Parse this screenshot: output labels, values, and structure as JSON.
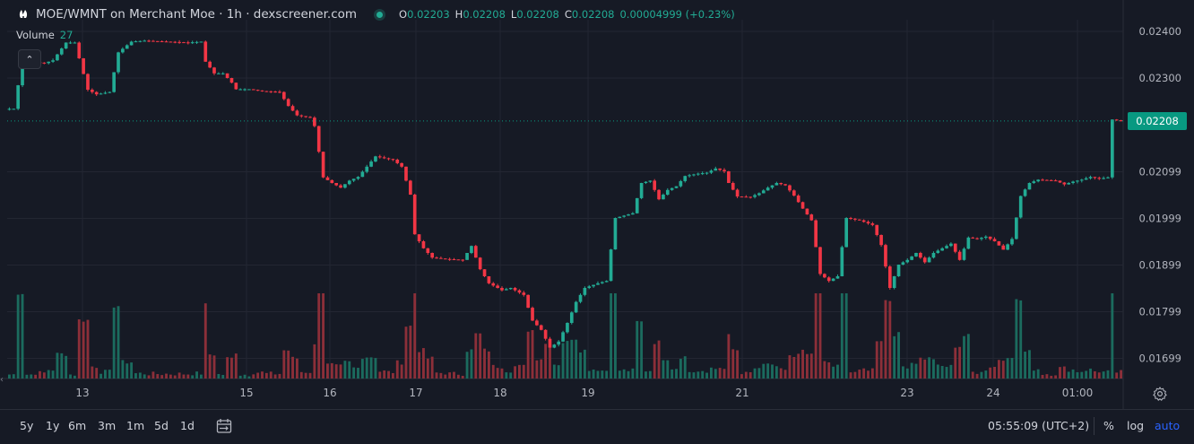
{
  "header": {
    "title": "MOE/WMNT on Merchant Moe · 1h · dexscreener.com",
    "ohlc": [
      {
        "k": "O",
        "v": "0.02203"
      },
      {
        "k": "H",
        "v": "0.02208"
      },
      {
        "k": "L",
        "v": "0.02208"
      },
      {
        "k": "C",
        "v": "0.02208"
      }
    ],
    "change": "0.00004999 (+0.23%)"
  },
  "volume": {
    "label": "Volume",
    "value": "27"
  },
  "last_price": "0.02208",
  "colors": {
    "up": "#22ab94",
    "down": "#f23645",
    "bg": "#161a25",
    "grid": "#232632",
    "vol_up": "#1b6b5e",
    "vol_down": "#8c2f39"
  },
  "icons": {
    "logo": "bunny-logo-icon",
    "gear": "gear-icon",
    "calendar": "calendar-range-icon"
  },
  "bottombar": {
    "timeframes": [
      "5y",
      "1y",
      "6m",
      "3m",
      "1m",
      "5d",
      "1d"
    ],
    "clock": "05:55:09 (UTC+2)",
    "percent": "%",
    "log": "log",
    "auto": "auto"
  },
  "chart_data": {
    "type": "candlestick",
    "title": "MOE/WMNT on Merchant Moe · 1h · dexscreener.com",
    "y_ticks": [
      "0.02400",
      "0.02300",
      "0.02099",
      "0.01999",
      "0.01899",
      "0.01799",
      "0.01699"
    ],
    "y_tick_values": [
      0.024,
      0.023,
      0.02099,
      0.01999,
      0.01899,
      0.01799,
      0.01699
    ],
    "x_ticks": [
      "13",
      "15",
      "16",
      "17",
      "18",
      "19",
      "21",
      "23",
      "24",
      "01:00"
    ],
    "ylim": [
      0.0165,
      0.0244
    ],
    "grid": true,
    "last_price": 0.02208,
    "close_path": [
      [
        0,
        0.02234
      ],
      [
        1,
        0.02234
      ],
      [
        3,
        0.02335
      ],
      [
        5,
        0.02335
      ],
      [
        8,
        0.02332
      ],
      [
        10,
        0.02338
      ],
      [
        13,
        0.02376
      ],
      [
        15,
        0.02376
      ],
      [
        18,
        0.02275
      ],
      [
        20,
        0.02265
      ],
      [
        23,
        0.0227
      ],
      [
        25,
        0.02355
      ],
      [
        28,
        0.02378
      ],
      [
        31,
        0.0238
      ],
      [
        36,
        0.02378
      ],
      [
        41,
        0.02376
      ],
      [
        44,
        0.02378
      ],
      [
        45,
        0.02335
      ],
      [
        47,
        0.0231
      ],
      [
        49,
        0.0231
      ],
      [
        51,
        0.0229
      ],
      [
        52,
        0.02276
      ],
      [
        55,
        0.02276
      ],
      [
        58,
        0.02272
      ],
      [
        62,
        0.0227
      ],
      [
        64,
        0.0224
      ],
      [
        66,
        0.0222
      ],
      [
        69,
        0.02215
      ],
      [
        70,
        0.02197
      ],
      [
        72,
        0.02087
      ],
      [
        74,
        0.02075
      ],
      [
        76,
        0.02065
      ],
      [
        78,
        0.0208
      ],
      [
        80,
        0.02088
      ],
      [
        82,
        0.0211
      ],
      [
        84,
        0.02132
      ],
      [
        86,
        0.02128
      ],
      [
        88,
        0.02125
      ],
      [
        90,
        0.0211
      ],
      [
        92,
        0.0205
      ],
      [
        93,
        0.01965
      ],
      [
        95,
        0.01935
      ],
      [
        97,
        0.01915
      ],
      [
        100,
        0.01912
      ],
      [
        104,
        0.0191
      ],
      [
        106,
        0.0194
      ],
      [
        108,
        0.0189
      ],
      [
        110,
        0.0186
      ],
      [
        113,
        0.01845
      ],
      [
        115,
        0.0185
      ],
      [
        118,
        0.01835
      ],
      [
        120,
        0.0178
      ],
      [
        122,
        0.0176
      ],
      [
        124,
        0.01722
      ],
      [
        126,
        0.01735
      ],
      [
        128,
        0.01775
      ],
      [
        130,
        0.0182
      ],
      [
        132,
        0.0185
      ],
      [
        135,
        0.0186
      ],
      [
        137,
        0.01865
      ],
      [
        139,
        0.02
      ],
      [
        141,
        0.02005
      ],
      [
        143,
        0.0201
      ],
      [
        145,
        0.02075
      ],
      [
        147,
        0.0208
      ],
      [
        149,
        0.0204
      ],
      [
        151,
        0.0206
      ],
      [
        153,
        0.02068
      ],
      [
        155,
        0.0209
      ],
      [
        158,
        0.02095
      ],
      [
        160,
        0.02097
      ],
      [
        162,
        0.02106
      ],
      [
        164,
        0.021
      ],
      [
        165,
        0.02075
      ],
      [
        167,
        0.02046
      ],
      [
        170,
        0.02045
      ],
      [
        172,
        0.02053
      ],
      [
        174,
        0.02065
      ],
      [
        176,
        0.02075
      ],
      [
        178,
        0.0207
      ],
      [
        180,
        0.02048
      ],
      [
        182,
        0.0202
      ],
      [
        184,
        0.01995
      ],
      [
        186,
        0.0188
      ],
      [
        188,
        0.01865
      ],
      [
        190,
        0.01875
      ],
      [
        192,
        0.02
      ],
      [
        195,
        0.01995
      ],
      [
        198,
        0.01985
      ],
      [
        200,
        0.01942
      ],
      [
        202,
        0.0185
      ],
      [
        204,
        0.019
      ],
      [
        206,
        0.0191
      ],
      [
        208,
        0.01925
      ],
      [
        210,
        0.01905
      ],
      [
        212,
        0.01925
      ],
      [
        214,
        0.01935
      ],
      [
        216,
        0.01945
      ],
      [
        218,
        0.0191
      ],
      [
        220,
        0.01958
      ],
      [
        222,
        0.01955
      ],
      [
        224,
        0.0196
      ],
      [
        226,
        0.0195
      ],
      [
        228,
        0.01932
      ],
      [
        230,
        0.01955
      ],
      [
        232,
        0.02047
      ],
      [
        234,
        0.02075
      ],
      [
        236,
        0.02082
      ],
      [
        240,
        0.0208
      ],
      [
        242,
        0.02072
      ],
      [
        244,
        0.02078
      ],
      [
        246,
        0.02082
      ],
      [
        248,
        0.02088
      ],
      [
        250,
        0.02084
      ],
      [
        252,
        0.02087
      ],
      [
        253,
        0.02211
      ],
      [
        255,
        0.02208
      ]
    ]
  }
}
